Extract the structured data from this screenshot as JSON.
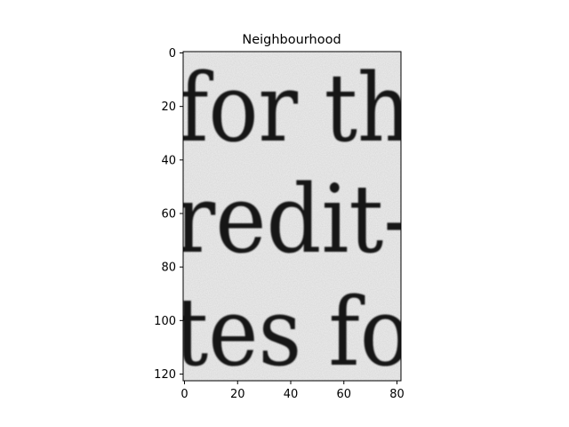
{
  "title": "Neighbourhood",
  "axes": {
    "xlim": [
      -0.5,
      81.5
    ],
    "ylim": [
      122.5,
      -0.5
    ],
    "y_inverted": true,
    "xticks": [
      0,
      20,
      40,
      60,
      80
    ],
    "yticks": [
      0,
      20,
      40,
      60,
      80,
      100,
      120
    ],
    "grid": false
  },
  "image": {
    "kind": "grayscale scanned text patch",
    "colormap": "gray",
    "background_color": "#eeeeee",
    "ink_color": "#191919",
    "text_lines": [
      {
        "text": "for th"
      },
      {
        "text": "redit-"
      },
      {
        "text": "tes fo"
      }
    ]
  }
}
